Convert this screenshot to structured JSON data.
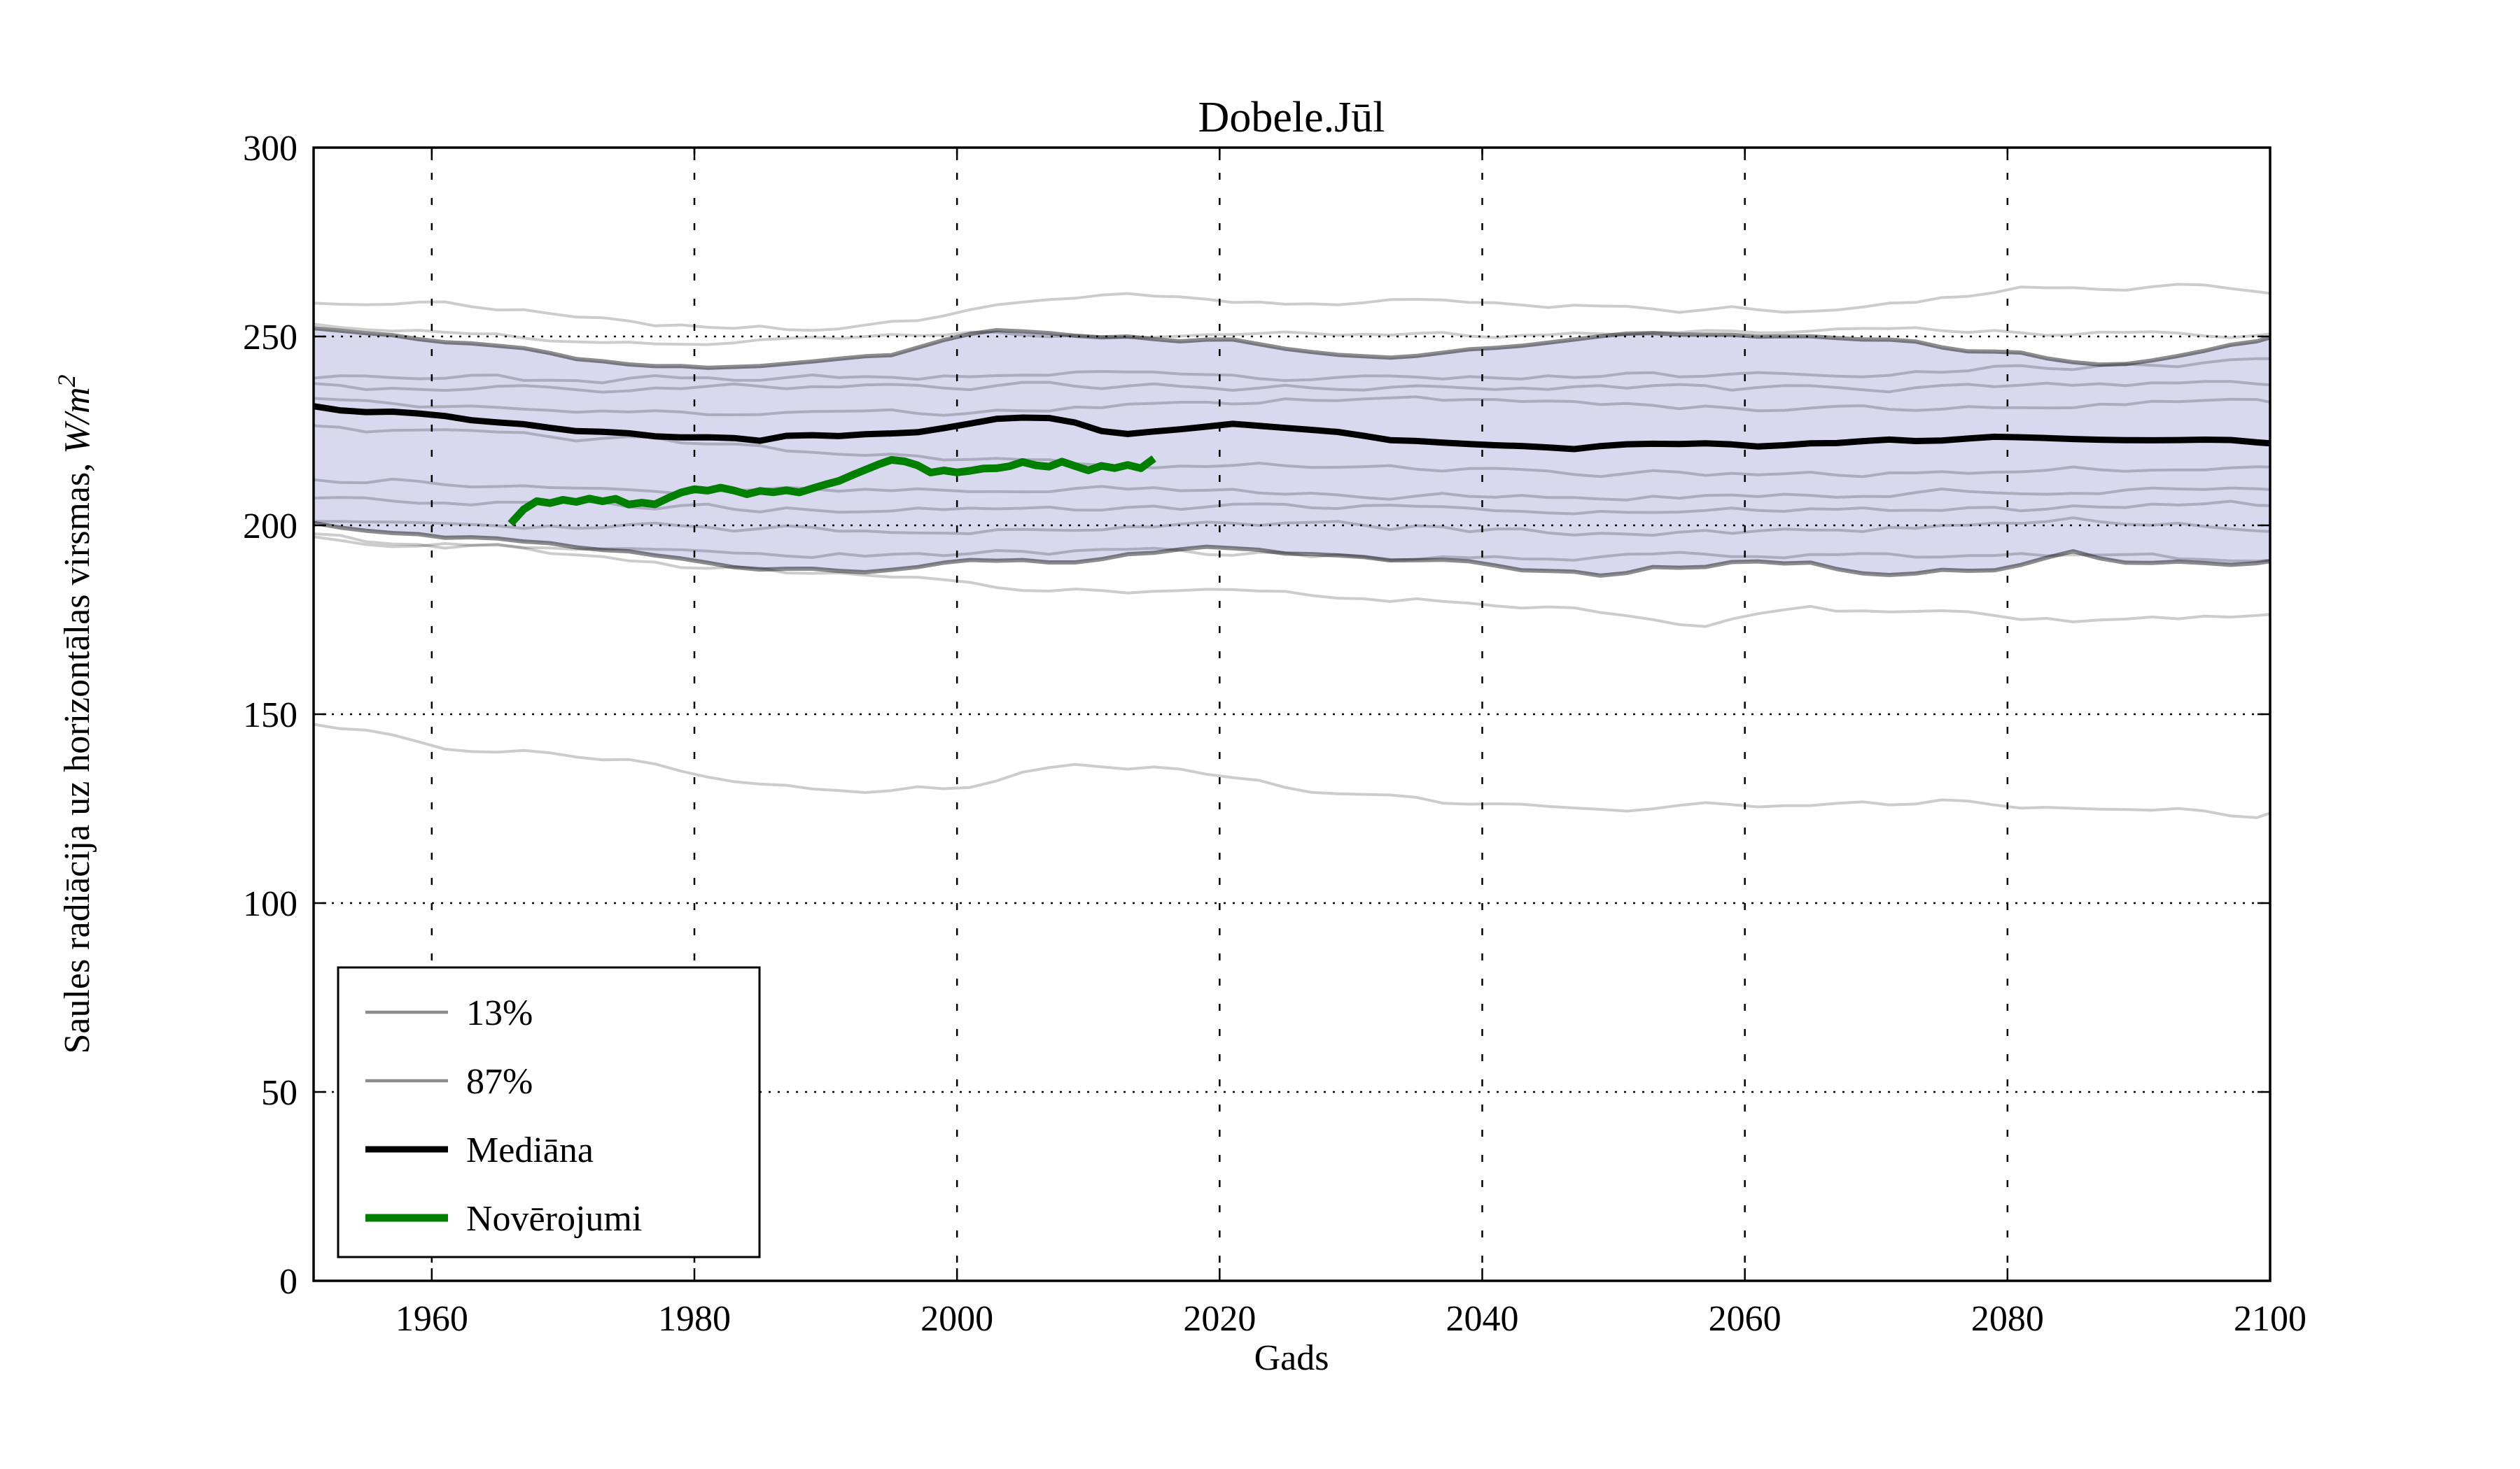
{
  "style": {
    "background": "#ffffff",
    "frame_color": "#000000",
    "grid_color": "#000000",
    "band_fill": "rgba(158,158,216,0.40)",
    "band_edge_color": "rgba(0,0,0,0.45)",
    "band_edge_legend_color": "#8c8c8c",
    "ensemble_color": "rgba(0,0,0,0.20)",
    "median_color": "#000000",
    "observations_color": "#007f00"
  },
  "legend": {
    "items": [
      {
        "label": "13%",
        "style": "thin-gray"
      },
      {
        "label": "87%",
        "style": "thin-gray"
      },
      {
        "label": "Mediāna",
        "style": "thick-black"
      },
      {
        "label": "Novērojumi",
        "style": "thick-green"
      }
    ]
  },
  "chart_data": {
    "type": "line",
    "title": "Dobele.Jūl",
    "xlabel": "Gads",
    "ylabel": "Saules radiācija uz horizontālas virsmas, W/m²",
    "ylabel_parts": {
      "text": "Saules radiācija uz horizontālas virsmas, ",
      "math_italic": "W/m",
      "sup": "2"
    },
    "xlim": [
      1951,
      2100
    ],
    "ylim": [
      0,
      300
    ],
    "grid": true,
    "legend_position": "lower left",
    "xticks": [
      {
        "v": 1960,
        "label": "1960"
      },
      {
        "v": 1980,
        "label": "1980"
      },
      {
        "v": 2000,
        "label": "2000"
      },
      {
        "v": 2020,
        "label": "2020"
      },
      {
        "v": 2040,
        "label": "2040"
      },
      {
        "v": 2060,
        "label": "2060"
      },
      {
        "v": 2080,
        "label": "2080"
      },
      {
        "v": 2100,
        "label": "2100"
      }
    ],
    "yticks": [
      {
        "v": 0,
        "label": "0"
      },
      {
        "v": 50,
        "label": "50"
      },
      {
        "v": 100,
        "label": "100"
      },
      {
        "v": 150,
        "label": "150"
      },
      {
        "v": 200,
        "label": "200"
      },
      {
        "v": 250,
        "label": "250"
      },
      {
        "v": 300,
        "label": "300"
      }
    ],
    "band": {
      "upper": {
        "name": "87%",
        "seed": 3,
        "amp": 0.8,
        "step": 2,
        "x": [
          1951,
          1956,
          1960,
          1964,
          1968,
          1972,
          1976,
          1980,
          1984,
          1988,
          1992,
          1996,
          2000,
          2004,
          2008,
          2012,
          2016,
          2020,
          2024,
          2028,
          2032,
          2036,
          2040,
          2044,
          2048,
          2052,
          2056,
          2060,
          2064,
          2068,
          2072,
          2076,
          2080,
          2084,
          2088,
          2092,
          2096,
          2100
        ],
        "y": [
          252.5,
          251,
          248.5,
          248.5,
          246.5,
          244,
          242,
          241.5,
          242,
          243,
          244,
          246,
          250,
          251.5,
          250.5,
          250,
          249.5,
          249.5,
          247,
          245,
          244.5,
          245.5,
          246.5,
          248,
          249.5,
          250.5,
          250.5,
          250,
          249.5,
          249,
          248.5,
          247,
          246,
          243.5,
          242.5,
          244,
          247,
          249.5
        ]
      },
      "lower": {
        "name": "13%",
        "seed": 4,
        "amp": 1.0,
        "step": 2,
        "x": [
          1951,
          1956,
          1960,
          1965,
          1970,
          1975,
          1980,
          1985,
          1990,
          1995,
          2000,
          2005,
          2010,
          2015,
          2020,
          2025,
          2030,
          2035,
          2040,
          2045,
          2050,
          2055,
          2060,
          2065,
          2070,
          2075,
          2080,
          2085,
          2090,
          2095,
          2100
        ],
        "y": [
          200.5,
          199,
          197.5,
          196,
          194.5,
          192.5,
          190.5,
          188,
          187.5,
          188,
          190.5,
          191,
          190.5,
          193,
          194.5,
          193,
          192,
          190.5,
          189.5,
          188,
          187,
          189,
          190,
          189.5,
          186.5,
          188,
          189,
          192.5,
          190,
          189.5,
          190
        ]
      }
    },
    "series": [
      {
        "name": "Mediāna",
        "role": "median",
        "seed": 7,
        "amp": 0.5,
        "step": 2,
        "width": 9,
        "x": [
          1951,
          1954,
          1957,
          1960,
          1963,
          1966,
          1970,
          1974,
          1978,
          1982,
          1985,
          1988,
          1991,
          1994,
          1997,
          2000,
          2003,
          2006,
          2009,
          2012,
          2015,
          2018,
          2021,
          2024,
          2027,
          2030,
          2033,
          2036,
          2040,
          2044,
          2047,
          2050,
          2054,
          2058,
          2062,
          2066,
          2070,
          2074,
          2078,
          2082,
          2086,
          2090,
          2094,
          2098,
          2100
        ],
        "y": [
          232,
          229.5,
          230,
          229.5,
          228,
          227,
          225.5,
          224.5,
          223.5,
          223.5,
          222.5,
          224,
          223.5,
          224.5,
          225,
          226.5,
          228,
          229,
          227,
          223.8,
          224.5,
          225.5,
          226.5,
          226.5,
          225.5,
          224.5,
          223,
          222,
          221.5,
          220.5,
          220,
          221.5,
          222,
          221.5,
          221,
          222,
          222.5,
          222,
          223,
          223.5,
          222.5,
          222,
          222.5,
          222,
          221.5
        ]
      },
      {
        "name": "Novērojumi",
        "role": "observations",
        "seed": 13,
        "amp": 0.45,
        "step": 1,
        "width": 11,
        "x_start": 1966,
        "x_step": 1,
        "y": [
          200.5,
          204.5,
          206.8,
          206.3,
          207.2,
          206.6,
          207.3,
          206.4,
          206.8,
          205.3,
          205.8,
          205.6,
          207.5,
          208.8,
          209.6,
          209.2,
          209.9,
          209.4,
          208.3,
          209.1,
          208.7,
          209.3,
          209.0,
          209.8,
          210.8,
          212.0,
          213.5,
          215.0,
          216.5,
          217.6,
          216.8,
          215.8,
          213.9,
          214.6,
          214.2,
          214.6,
          215.0,
          215.3,
          215.8,
          217.0,
          216.2,
          215.7,
          217.1,
          216.0,
          214.8,
          215.6,
          215.2,
          216.3,
          215.1,
          217.8
        ]
      }
    ],
    "ensemble_members": [
      {
        "seed": 21,
        "amp": 1.2,
        "x": [
          1951,
          1960,
          1970,
          1980,
          1990,
          2000,
          2012,
          2025,
          2040,
          2055,
          2070,
          2085,
          2095,
          2100
        ],
        "y": [
          259,
          258.5,
          256,
          252.5,
          252,
          256,
          262,
          258,
          259.5,
          257,
          258,
          263.5,
          263,
          262
        ]
      },
      {
        "seed": 22,
        "amp": 1.0,
        "x": [
          1951,
          1960,
          1970,
          1980,
          1990,
          2000,
          2010,
          2025,
          2040,
          2055,
          2070,
          2085,
          2100
        ],
        "y": [
          253.5,
          251,
          249.5,
          248,
          249.5,
          251.5,
          250,
          251.5,
          250.5,
          251,
          252,
          251,
          250.5
        ]
      },
      {
        "seed": 23,
        "amp": 1.2,
        "x": [
          1951,
          1970,
          1990,
          2010,
          2030,
          2050,
          2070,
          2085,
          2100
        ],
        "y": [
          240,
          238.5,
          239,
          240,
          238.5,
          239.5,
          240.5,
          242,
          243.5
        ]
      },
      {
        "seed": 24,
        "amp": 1.3,
        "x": [
          1951,
          1970,
          1990,
          2010,
          2030,
          2050,
          2070,
          2100
        ],
        "y": [
          237,
          236,
          236.5,
          237,
          236,
          236.5,
          236,
          238
        ]
      },
      {
        "seed": 25,
        "amp": 1.3,
        "x": [
          1951,
          1970,
          1990,
          2010,
          2030,
          2050,
          2070,
          2100
        ],
        "y": [
          233,
          231,
          229,
          231.5,
          233.5,
          232,
          231,
          233
        ]
      },
      {
        "seed": 26,
        "amp": 1.2,
        "x": [
          1951,
          1965,
          1980,
          1995,
          2010,
          2030,
          2050,
          2070,
          2100
        ],
        "y": [
          226,
          224,
          222,
          218,
          216.5,
          215.5,
          213.5,
          214,
          215
        ]
      },
      {
        "seed": 27,
        "amp": 1.4,
        "x": [
          1951,
          1970,
          1990,
          2010,
          2030,
          2050,
          2070,
          2100
        ],
        "y": [
          213,
          210,
          209,
          210,
          208,
          207.5,
          208.5,
          210
        ]
      },
      {
        "seed": 28,
        "amp": 1.2,
        "x": [
          1951,
          1970,
          1990,
          2010,
          2030,
          2050,
          2070,
          2100
        ],
        "y": [
          207,
          205.5,
          204,
          204.5,
          205,
          203.5,
          204,
          205.5
        ]
      },
      {
        "seed": 29,
        "amp": 1.5,
        "x": [
          1951,
          1970,
          1990,
          2010,
          2030,
          2050,
          2070,
          2085,
          2100
        ],
        "y": [
          202,
          200,
          198.5,
          199.5,
          200.5,
          198,
          199,
          201,
          199
        ]
      },
      {
        "seed": 30,
        "amp": 1.3,
        "x": [
          1951,
          1970,
          1990,
          2010,
          2030,
          2050,
          2070,
          2100
        ],
        "y": [
          196,
          193.5,
          192,
          193,
          192,
          191.5,
          192.5,
          191
        ]
      },
      {
        "seed": 31,
        "amp": 1.4,
        "x": [
          1951,
          1965,
          1980,
          1995,
          2010,
          2025,
          2040,
          2048,
          2056,
          2065,
          2075,
          2085,
          2092,
          2100
        ],
        "y": [
          197,
          194,
          189,
          185.5,
          183,
          181.5,
          180,
          176.5,
          173.5,
          177.5,
          176.5,
          174.5,
          175.5,
          176
        ]
      },
      {
        "seed": 32,
        "amp": 1.2,
        "x": [
          1951,
          1955,
          1960,
          1965,
          1970,
          1975,
          1980,
          1985,
          1990,
          1995,
          2000,
          2005,
          2010,
          2015,
          2020,
          2025,
          2030,
          2035,
          2040,
          2045,
          2050,
          2055,
          2060,
          2065,
          2070,
          2075,
          2080,
          2085,
          2090,
          2093,
          2096,
          2100
        ],
        "y": [
          147,
          145.5,
          142,
          139.5,
          139.8,
          138,
          134.5,
          131.5,
          130,
          129.5,
          130.5,
          134,
          136.5,
          135.5,
          133,
          131,
          129.5,
          127.5,
          126,
          125,
          124.5,
          125.5,
          126,
          126.5,
          126,
          127,
          126,
          125.5,
          124,
          125,
          123,
          123.5
        ]
      }
    ]
  }
}
